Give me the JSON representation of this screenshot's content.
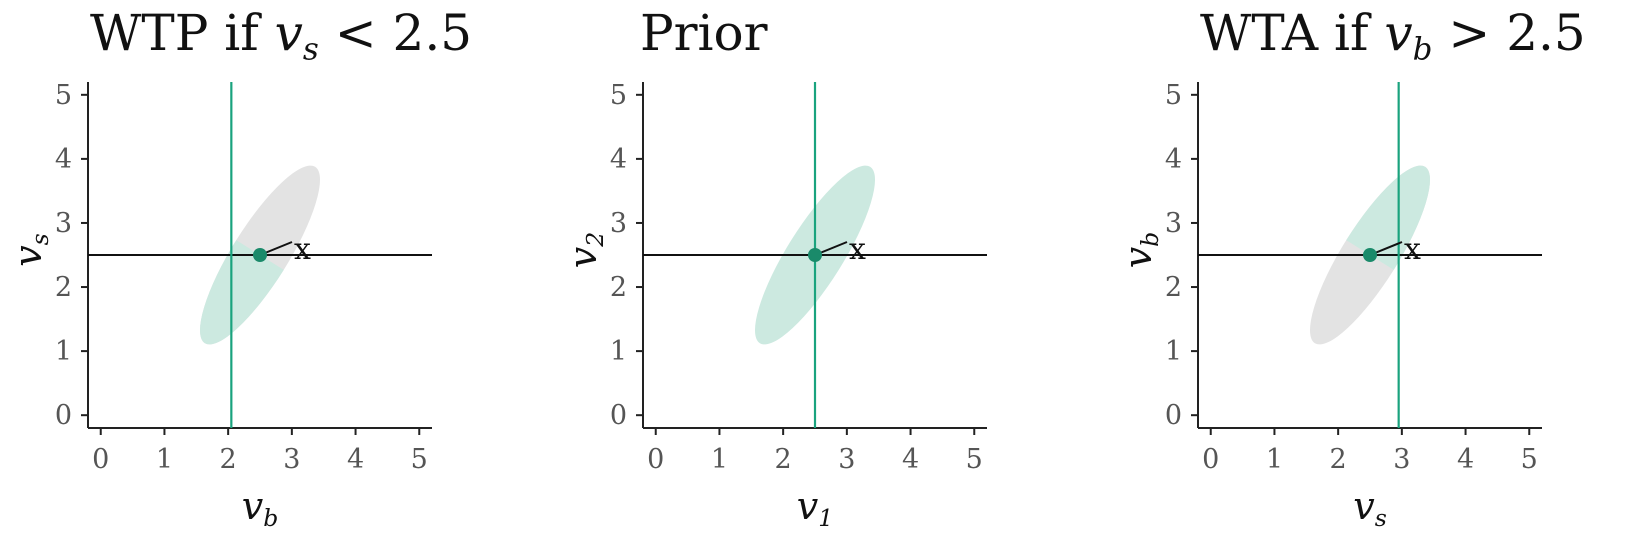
{
  "chart_data": [
    {
      "type": "scatter",
      "title": {
        "prefix": "WTP if ",
        "var": "v",
        "sub": "s",
        "suffix": " < 2.5"
      },
      "xlabel": {
        "var": "v",
        "sub": "b"
      },
      "ylabel": {
        "var": "v",
        "sub": "s"
      },
      "xlim": [
        -0.2,
        5.2
      ],
      "ylim": [
        -0.2,
        5.2
      ],
      "xticks": [
        "0",
        "1",
        "2",
        "3",
        "4",
        "5"
      ],
      "yticks": [
        "0",
        "1",
        "2",
        "3",
        "4",
        "5"
      ],
      "grid": false,
      "ellipse": {
        "center": [
          2.5,
          2.5
        ],
        "color": "#e3e3e3"
      },
      "highlight_half": {
        "side": "below",
        "line": "hline",
        "color": "#cce9e0"
      },
      "vline": {
        "x": 2.05,
        "color": "#1aa37e"
      },
      "hline": {
        "y": 2.5,
        "color": "#111111"
      },
      "point": {
        "x": 2.5,
        "y": 2.5,
        "label": "x",
        "color": "#1a8a6a"
      }
    },
    {
      "type": "scatter",
      "title": {
        "prefix": "Prior",
        "var": "",
        "sub": "",
        "suffix": ""
      },
      "xlabel": {
        "var": "v",
        "sub": "1"
      },
      "ylabel": {
        "var": "v",
        "sub": "2"
      },
      "xlim": [
        -0.2,
        5.2
      ],
      "ylim": [
        -0.2,
        5.2
      ],
      "xticks": [
        "0",
        "1",
        "2",
        "3",
        "4",
        "5"
      ],
      "yticks": [
        "0",
        "1",
        "2",
        "3",
        "4",
        "5"
      ],
      "grid": false,
      "ellipse": {
        "center": [
          2.5,
          2.5
        ],
        "color": "#cce9e0"
      },
      "highlight_half": null,
      "vline": {
        "x": 2.5,
        "color": "#1aa37e"
      },
      "hline": {
        "y": 2.5,
        "color": "#111111"
      },
      "point": {
        "x": 2.5,
        "y": 2.5,
        "label": "x",
        "color": "#1a8a6a"
      }
    },
    {
      "type": "scatter",
      "title": {
        "prefix": "WTA if ",
        "var": "v",
        "sub": "b",
        "suffix": " > 2.5"
      },
      "xlabel": {
        "var": "v",
        "sub": "s"
      },
      "ylabel": {
        "var": "v",
        "sub": "b"
      },
      "xlim": [
        -0.2,
        5.2
      ],
      "ylim": [
        -0.2,
        5.2
      ],
      "xticks": [
        "0",
        "1",
        "2",
        "3",
        "4",
        "5"
      ],
      "yticks": [
        "0",
        "1",
        "2",
        "3",
        "4",
        "5"
      ],
      "grid": false,
      "ellipse": {
        "center": [
          2.5,
          2.5
        ],
        "color": "#e3e3e3"
      },
      "highlight_half": {
        "side": "above",
        "line": "hline",
        "color": "#cce9e0"
      },
      "vline": {
        "x": 2.95,
        "color": "#1aa37e"
      },
      "hline": {
        "y": 2.5,
        "color": "#111111"
      },
      "point": {
        "x": 2.5,
        "y": 2.5,
        "label": "x",
        "color": "#1a8a6a"
      }
    }
  ]
}
